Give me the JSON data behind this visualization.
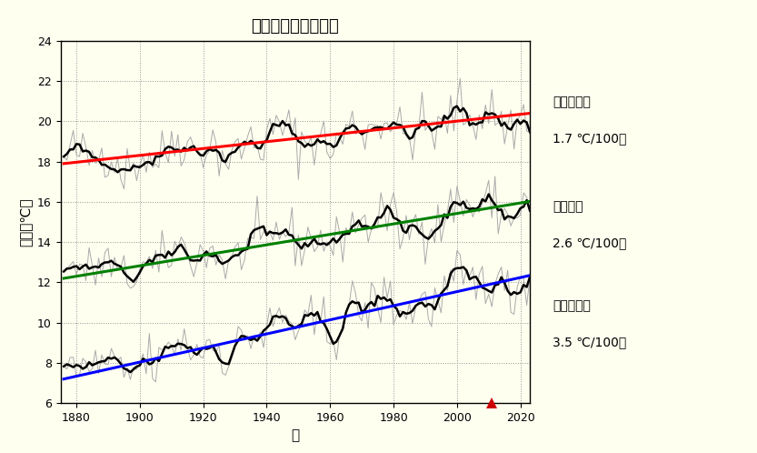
{
  "title": "東京の年気温３要素",
  "xlabel": "年",
  "ylabel": "気温（℃）",
  "year_start": 1876,
  "year_end": 2023,
  "xlim": [
    1875,
    2023
  ],
  "ylim": [
    6,
    24
  ],
  "yticks": [
    6,
    8,
    10,
    12,
    14,
    16,
    18,
    20,
    22,
    24
  ],
  "xticks": [
    1880,
    1900,
    1920,
    1940,
    1960,
    1980,
    2000,
    2020
  ],
  "bg_color": "#FFFFF0",
  "plot_bg_color": "#FFFFF0",
  "grid_color": "#888888",
  "marker_year": 2011,
  "marker_color": "#CC0000",
  "trend_max": {
    "color": "#FF0000",
    "slope": 1.7,
    "intercept_year": 1876,
    "intercept_val": 17.9
  },
  "trend_mean": {
    "color": "#008000",
    "slope": 2.6,
    "intercept_year": 1876,
    "intercept_val": 12.2
  },
  "trend_min": {
    "color": "#0000FF",
    "slope": 3.5,
    "intercept_year": 1876,
    "intercept_val": 7.2
  },
  "label_max_line1": "日最高気温",
  "label_max_line2": "1.7 ℃/100年",
  "label_mean_line1": "平均気温",
  "label_mean_line2": "2.6 ℃/100年",
  "label_min_line1": "日最低気温",
  "label_min_line2": "3.5 ℃/100年",
  "noise_seed": 42,
  "smooth_window": 5
}
